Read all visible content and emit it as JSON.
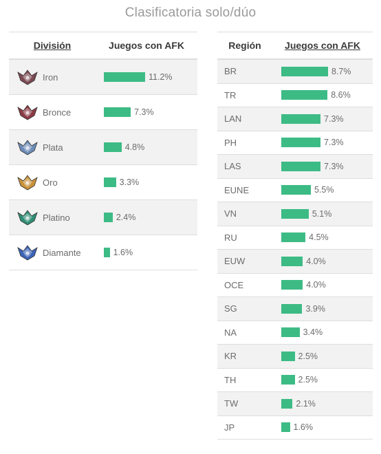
{
  "page": {
    "title": "Clasificatoria solo/dúo"
  },
  "colors": {
    "bar": "#3dbb85",
    "row_alt": "#f2f2f2",
    "iron": "#7b4a52",
    "bronce": "#8a3b45",
    "plata": "#6e8cb8",
    "oro": "#c8913a",
    "platino": "#2f8d75",
    "diamante": "#3c63b6"
  },
  "division_table": {
    "headers": [
      "División",
      "Juegos con AFK"
    ],
    "rows": [
      {
        "name": "Iron",
        "value_label": "11.2%",
        "value": 11.2,
        "icon": "iron-emblem-icon"
      },
      {
        "name": "Bronce",
        "value_label": "7.3%",
        "value": 7.3,
        "icon": "bronze-emblem-icon"
      },
      {
        "name": "Plata",
        "value_label": "4.8%",
        "value": 4.8,
        "icon": "silver-emblem-icon"
      },
      {
        "name": "Oro",
        "value_label": "3.3%",
        "value": 3.3,
        "icon": "gold-emblem-icon"
      },
      {
        "name": "Platino",
        "value_label": "2.4%",
        "value": 2.4,
        "icon": "platinum-emblem-icon"
      },
      {
        "name": "Diamante",
        "value_label": "1.6%",
        "value": 1.6,
        "icon": "diamond-emblem-icon"
      }
    ]
  },
  "region_table": {
    "headers": [
      "Región",
      "Juegos con AFK"
    ],
    "rows": [
      {
        "name": "BR",
        "value_label": "8.7%",
        "value": 8.7
      },
      {
        "name": "TR",
        "value_label": "8.6%",
        "value": 8.6
      },
      {
        "name": "LAN",
        "value_label": "7.3%",
        "value": 7.3
      },
      {
        "name": "PH",
        "value_label": "7.3%",
        "value": 7.3
      },
      {
        "name": "LAS",
        "value_label": "7.3%",
        "value": 7.3
      },
      {
        "name": "EUNE",
        "value_label": "5.5%",
        "value": 5.5
      },
      {
        "name": "VN",
        "value_label": "5.1%",
        "value": 5.1
      },
      {
        "name": "RU",
        "value_label": "4.5%",
        "value": 4.5
      },
      {
        "name": "EUW",
        "value_label": "4.0%",
        "value": 4.0
      },
      {
        "name": "OCE",
        "value_label": "4.0%",
        "value": 4.0
      },
      {
        "name": "SG",
        "value_label": "3.9%",
        "value": 3.9
      },
      {
        "name": "NA",
        "value_label": "3.4%",
        "value": 3.4
      },
      {
        "name": "KR",
        "value_label": "2.5%",
        "value": 2.5
      },
      {
        "name": "TH",
        "value_label": "2.5%",
        "value": 2.5
      },
      {
        "name": "TW",
        "value_label": "2.1%",
        "value": 2.1
      },
      {
        "name": "JP",
        "value_label": "1.6%",
        "value": 1.6
      }
    ]
  },
  "chart_data": [
    {
      "type": "bar",
      "title": "Clasificatoria solo/dúo",
      "xlabel": "División",
      "ylabel": "Juegos con AFK",
      "categories": [
        "Iron",
        "Bronce",
        "Plata",
        "Oro",
        "Platino",
        "Diamante"
      ],
      "values": [
        11.2,
        7.3,
        4.8,
        3.3,
        2.4,
        1.6
      ]
    },
    {
      "type": "bar",
      "title": "Clasificatoria solo/dúo",
      "xlabel": "Región",
      "ylabel": "Juegos con AFK",
      "categories": [
        "BR",
        "TR",
        "LAN",
        "PH",
        "LAS",
        "EUNE",
        "VN",
        "RU",
        "EUW",
        "OCE",
        "SG",
        "NA",
        "KR",
        "TH",
        "TW",
        "JP"
      ],
      "values": [
        8.7,
        8.6,
        7.3,
        7.3,
        7.3,
        5.5,
        5.1,
        4.5,
        4.0,
        4.0,
        3.9,
        3.4,
        2.5,
        2.5,
        2.1,
        1.6
      ]
    }
  ]
}
